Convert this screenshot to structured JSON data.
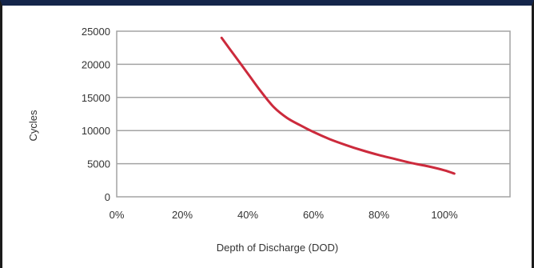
{
  "chart_data": {
    "type": "line",
    "xlabel": "Depth of Discharge (DOD)",
    "ylabel": "Cycles",
    "xlim": [
      0,
      120
    ],
    "ylim": [
      0,
      25000
    ],
    "x_ticks": [
      0,
      20,
      40,
      60,
      80,
      100
    ],
    "x_tick_labels": [
      "0%",
      "20%",
      "40%",
      "60%",
      "80%",
      "100%"
    ],
    "y_ticks": [
      0,
      5000,
      10000,
      15000,
      20000,
      25000
    ],
    "y_tick_labels": [
      "0",
      "5000",
      "10000",
      "15000",
      "20000",
      "25000"
    ],
    "grid": "horizontal",
    "line_color": "#cc2a3c",
    "series": [
      {
        "x": [
          32,
          36,
          40,
          44,
          48,
          52,
          56,
          60,
          65,
          70,
          75,
          80,
          85,
          90,
          95,
          100,
          103
        ],
        "y": [
          24000,
          21300,
          18600,
          15900,
          13500,
          11900,
          10800,
          9800,
          8700,
          7800,
          7000,
          6300,
          5700,
          5100,
          4600,
          4000,
          3500
        ]
      }
    ]
  }
}
